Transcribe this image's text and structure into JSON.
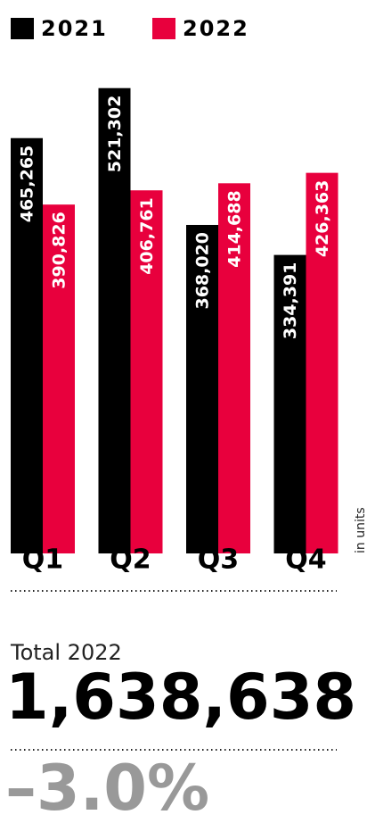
{
  "chart_data": {
    "type": "bar",
    "categories": [
      "Q1",
      "Q2",
      "Q3",
      "Q4"
    ],
    "series": [
      {
        "name": "2021",
        "color": "#000000",
        "values": [
          465265,
          521302,
          368020,
          334391
        ],
        "value_labels": [
          "465,265",
          "521,302",
          "368,020",
          "334,391"
        ]
      },
      {
        "name": "2022",
        "color": "#e8003d",
        "values": [
          390826,
          406761,
          414688,
          426363
        ],
        "value_labels": [
          "390,826",
          "406,761",
          "414,688",
          "426,363"
        ]
      }
    ],
    "y_label": "in units",
    "ylim": [
      0,
      620000
    ]
  },
  "summary": {
    "total_label": "Total 2022",
    "total_value": "1,638,638",
    "change": "–3.0%"
  }
}
